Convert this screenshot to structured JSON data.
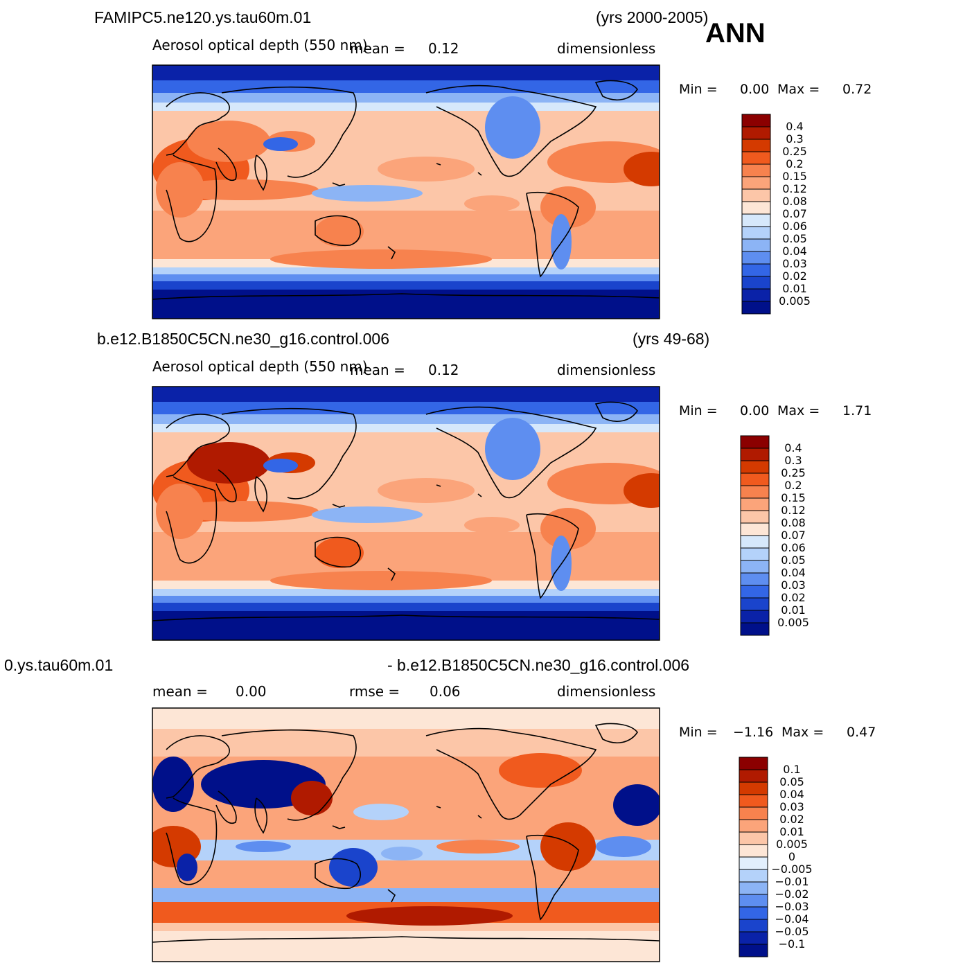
{
  "season": "ANN",
  "panels": [
    {
      "case_name": "FAMIPC5.ne120.ys.tau60m.01",
      "years": "(yrs 2000-2005)",
      "variable": "Aerosol optical depth (550 nm)",
      "mean_text": "mean =",
      "mean_value": "0.12",
      "units": "dimensionless",
      "min_label": "Min =",
      "min_value": "0.00",
      "max_label": "Max =",
      "max_value": "0.72",
      "colorbar_labels": [
        "0.4",
        "0.3",
        "0.25",
        "0.2",
        "0.15",
        "0.12",
        "0.08",
        "0.07",
        "0.06",
        "0.05",
        "0.04",
        "0.03",
        "0.02",
        "0.01",
        "0.005"
      ]
    },
    {
      "case_name": "b.e12.B1850C5CN.ne30_g16.control.006",
      "years": "(yrs 49-68)",
      "variable": "Aerosol optical depth (550 nm)",
      "mean_text": "mean =",
      "mean_value": "0.12",
      "units": "dimensionless",
      "min_label": "Min =",
      "min_value": "0.00",
      "max_label": "Max =",
      "max_value": "1.71",
      "colorbar_labels": [
        "0.4",
        "0.3",
        "0.25",
        "0.2",
        "0.15",
        "0.12",
        "0.08",
        "0.07",
        "0.06",
        "0.05",
        "0.04",
        "0.03",
        "0.02",
        "0.01",
        "0.005"
      ]
    },
    {
      "case_name_left": "0.ys.tau60m.01",
      "case_name_right": "- b.e12.B1850C5CN.ne30_g16.control.006",
      "mean_text": "mean =",
      "mean_value": "0.00",
      "rmse_text": "rmse =",
      "rmse_value": "0.06",
      "units": "dimensionless",
      "min_label": "Min =",
      "min_value": "−1.16",
      "max_label": "Max =",
      "max_value": "0.47",
      "colorbar_labels": [
        "0.1",
        "0.05",
        "0.04",
        "0.03",
        "0.02",
        "0.01",
        "0.005",
        "0",
        "−0.005",
        "−0.01",
        "−0.02",
        "−0.03",
        "−0.04",
        "−0.05",
        "−0.1"
      ]
    }
  ],
  "colors": {
    "seq_scale": [
      "#8b0000",
      "#b01a00",
      "#d43a00",
      "#f05a1e",
      "#f7824e",
      "#fba47a",
      "#fcc6a8",
      "#fde6d6",
      "#d6e8fb",
      "#b4d2fa",
      "#8cb4f5",
      "#5e8ef0",
      "#3366e6",
      "#1a44cc",
      "#0a22a8",
      "#00108a"
    ],
    "div_scale": [
      "#8b0000",
      "#b01a00",
      "#d43a00",
      "#f05a1e",
      "#f7824e",
      "#fba47a",
      "#fcc6a8",
      "#fde6d6",
      "#e2effc",
      "#b4d2fa",
      "#8cb4f5",
      "#5e8ef0",
      "#3366e6",
      "#1a44cc",
      "#0a22a8",
      "#00108a"
    ]
  }
}
